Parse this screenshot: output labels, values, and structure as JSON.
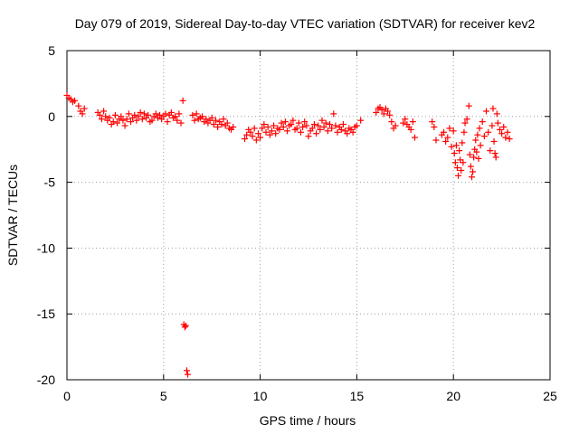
{
  "chart_data": {
    "type": "scatter",
    "title": "Day 079 of 2019, Sidereal Day-to-day VTEC variation (SDTVAR) for receiver kev2",
    "xlabel": "GPS time / hours",
    "ylabel": "SDTVAR / TECUs",
    "xlim": [
      0,
      25
    ],
    "ylim": [
      -20,
      5
    ],
    "xticks": [
      0,
      5,
      10,
      15,
      20,
      25
    ],
    "yticks": [
      5,
      0,
      -5,
      -10,
      -15,
      -20
    ],
    "xtick_labels": [
      "0",
      "5",
      "10",
      "15",
      "20",
      "25"
    ],
    "ytick_labels": [
      "5",
      "0",
      "-5",
      "-10",
      "-15",
      "-20"
    ],
    "grid": true,
    "marker": "+",
    "color": "#ff0000",
    "series": [
      {
        "name": "SDTVAR",
        "x": [
          0.0,
          0.1,
          0.2,
          0.3,
          0.4,
          0.6,
          0.7,
          0.8,
          0.9,
          1.6,
          1.7,
          1.8,
          1.9,
          2.0,
          2.1,
          2.2,
          2.3,
          2.4,
          2.5,
          2.6,
          2.7,
          2.8,
          2.9,
          3.0,
          3.1,
          3.2,
          3.3,
          3.4,
          3.5,
          3.6,
          3.7,
          3.8,
          3.9,
          4.0,
          4.1,
          4.2,
          4.3,
          4.4,
          4.5,
          4.6,
          4.7,
          4.8,
          4.9,
          5.0,
          5.1,
          5.2,
          5.3,
          5.4,
          5.5,
          5.6,
          5.7,
          5.8,
          5.9,
          6.0,
          6.05,
          6.1,
          6.15,
          6.2,
          6.25,
          6.5,
          6.6,
          6.7,
          6.8,
          6.9,
          7.0,
          7.1,
          7.2,
          7.3,
          7.4,
          7.5,
          7.6,
          7.7,
          7.8,
          7.9,
          8.0,
          8.1,
          8.2,
          8.3,
          8.4,
          8.5,
          8.6,
          9.2,
          9.3,
          9.4,
          9.5,
          9.6,
          9.7,
          9.8,
          9.9,
          10.0,
          10.1,
          10.2,
          10.3,
          10.4,
          10.5,
          10.6,
          10.7,
          10.8,
          10.9,
          11.0,
          11.1,
          11.2,
          11.3,
          11.4,
          11.5,
          11.6,
          11.7,
          11.8,
          11.9,
          12.0,
          12.1,
          12.2,
          12.3,
          12.4,
          12.5,
          12.6,
          12.7,
          12.8,
          12.9,
          13.0,
          13.1,
          13.2,
          13.3,
          13.4,
          13.5,
          13.6,
          13.7,
          13.8,
          13.9,
          14.0,
          14.1,
          14.2,
          14.3,
          14.4,
          14.5,
          14.6,
          14.7,
          14.8,
          14.9,
          15.0,
          15.2,
          16.0,
          16.1,
          16.2,
          16.3,
          16.4,
          16.5,
          16.6,
          16.7,
          16.8,
          16.9,
          17.0,
          17.4,
          17.5,
          17.6,
          17.7,
          17.8,
          17.9,
          18.0,
          18.9,
          19.0,
          19.1,
          19.4,
          19.5,
          19.6,
          19.7,
          19.8,
          19.9,
          20.0,
          20.05,
          20.1,
          20.15,
          20.2,
          20.25,
          20.3,
          20.35,
          20.4,
          20.45,
          20.5,
          20.55,
          20.6,
          20.7,
          20.8,
          20.85,
          20.9,
          20.95,
          21.0,
          21.05,
          21.1,
          21.15,
          21.2,
          21.25,
          21.3,
          21.35,
          21.4,
          21.5,
          21.6,
          21.7,
          21.8,
          21.9,
          22.0,
          22.05,
          22.1,
          22.15,
          22.2,
          22.25,
          22.3,
          22.4,
          22.5,
          22.6,
          22.7,
          22.8,
          22.9
        ],
        "y": [
          1.6,
          1.4,
          1.3,
          1.1,
          1.2,
          0.8,
          0.4,
          0.2,
          0.6,
          0.3,
          0.1,
          -0.2,
          0.4,
          0.0,
          -0.3,
          -0.1,
          -0.6,
          -0.4,
          0.1,
          -0.5,
          -0.2,
          0.0,
          -0.3,
          -0.7,
          -0.2,
          0.2,
          -0.4,
          -0.1,
          0.1,
          -0.3,
          0.0,
          0.3,
          -0.2,
          0.2,
          -0.1,
          0.1,
          -0.4,
          -0.3,
          0.0,
          0.2,
          -0.1,
          0.1,
          -0.2,
          0.0,
          0.2,
          -0.4,
          0.1,
          0.3,
          -0.1,
          0.0,
          -0.3,
          0.2,
          -0.5,
          1.2,
          -15.8,
          -16.0,
          -15.9,
          -19.3,
          -19.6,
          0.1,
          -0.3,
          0.2,
          -0.2,
          -0.1,
          0.0,
          -0.4,
          -0.2,
          -0.5,
          -0.3,
          -0.1,
          -0.6,
          -0.3,
          -0.8,
          -0.4,
          -0.6,
          -0.2,
          -0.7,
          -0.5,
          -0.9,
          -1.0,
          -0.8,
          -1.7,
          -1.4,
          -1.0,
          -1.2,
          -1.5,
          -0.9,
          -1.8,
          -1.3,
          -1.6,
          -0.9,
          -0.6,
          -1.2,
          -0.8,
          -1.4,
          -1.1,
          -0.7,
          -1.3,
          -0.9,
          -1.0,
          -0.5,
          -0.8,
          -0.4,
          -1.1,
          -0.7,
          -0.6,
          -0.3,
          -1.0,
          -0.9,
          -0.5,
          -1.2,
          -0.8,
          -0.4,
          -0.7,
          -1.5,
          -1.1,
          -0.9,
          -0.6,
          -1.3,
          -0.7,
          -1.0,
          -0.3,
          -0.8,
          -0.5,
          -1.1,
          -0.6,
          -0.9,
          0.2,
          -0.7,
          -1.2,
          -0.8,
          -1.0,
          -0.6,
          -1.1,
          -1.3,
          -0.9,
          -1.0,
          -1.2,
          -0.8,
          -0.7,
          -0.3,
          0.3,
          0.6,
          0.7,
          0.5,
          0.2,
          0.6,
          0.4,
          0.1,
          -0.4,
          -0.9,
          -0.7,
          -0.5,
          -0.2,
          -0.6,
          -0.8,
          -1.0,
          -0.4,
          -1.6,
          -0.4,
          -0.8,
          -1.8,
          -1.4,
          -1.2,
          -1.9,
          -1.6,
          -0.9,
          -2.3,
          -1.1,
          -2.8,
          -3.5,
          -2.2,
          -3.9,
          -4.5,
          -2.6,
          -3.3,
          -4.1,
          -2.0,
          -3.5,
          -1.2,
          -0.5,
          -0.2,
          0.8,
          -2.9,
          -3.8,
          -4.6,
          -4.2,
          -3.1,
          -2.5,
          -1.8,
          -2.7,
          -1.4,
          -3.2,
          -0.9,
          -2.2,
          -0.4,
          -1.5,
          0.4,
          -1.2,
          -2.6,
          -0.7,
          0.6,
          -1.9,
          -2.8,
          -3.1,
          0.2,
          -0.5,
          -1.0,
          -1.3,
          -0.8,
          -1.6,
          -1.2,
          -1.7
        ]
      }
    ]
  }
}
